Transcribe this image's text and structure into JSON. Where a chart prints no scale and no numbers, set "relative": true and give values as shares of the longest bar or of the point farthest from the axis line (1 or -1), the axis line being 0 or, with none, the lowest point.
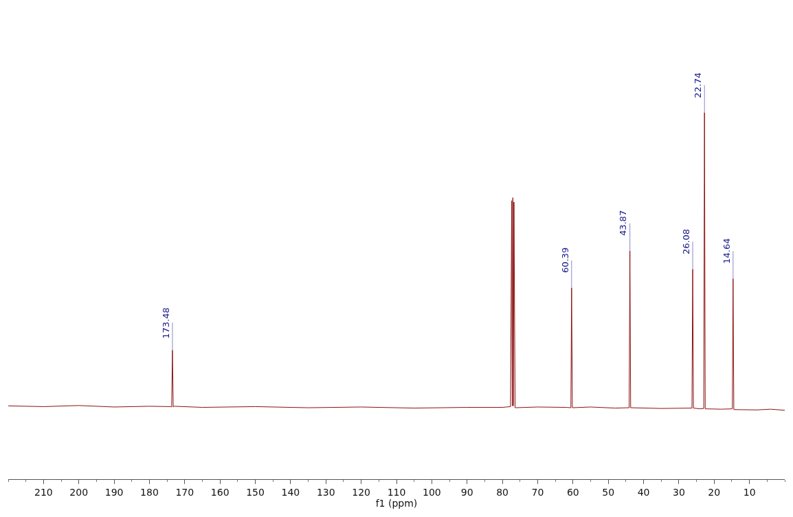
{
  "chart_data": {
    "type": "line",
    "relative": true,
    "xlabel": "f1 (ppm)",
    "x": [
      220,
      210,
      200,
      190,
      180,
      174,
      173.7,
      173.48,
      173.26,
      173,
      165,
      150,
      135,
      120,
      105,
      90,
      80,
      77.7,
      77.36,
      77.2,
      77.04,
      76.88,
      76.72,
      76.4,
      70,
      62,
      60.6,
      60.39,
      60.18,
      55,
      48,
      44.08,
      43.87,
      43.66,
      35,
      26.29,
      26.08,
      25.87,
      24,
      22.95,
      22.74,
      22.53,
      18,
      14.85,
      14.64,
      14.43,
      8,
      4,
      0
    ],
    "series": [
      {
        "color": "#8b1010",
        "values": [
          0.2,
          0.198,
          0.201,
          0.197,
          0.199,
          0.198,
          0.197,
          0.352,
          0.197,
          0.199,
          0.196,
          0.198,
          0.195,
          0.197,
          0.194,
          0.196,
          0.196,
          0.198,
          0.76,
          0.2,
          0.768,
          0.2,
          0.756,
          0.195,
          0.197,
          0.196,
          0.195,
          0.522,
          0.195,
          0.197,
          0.194,
          0.195,
          0.623,
          0.195,
          0.193,
          0.194,
          0.573,
          0.194,
          0.192,
          0.193,
          1.0,
          0.192,
          0.191,
          0.192,
          0.547,
          0.19,
          0.189,
          0.191,
          0.188
        ]
      }
    ],
    "xlim": [
      220,
      0
    ],
    "xticks": [
      210,
      200,
      190,
      180,
      170,
      160,
      150,
      140,
      130,
      120,
      110,
      100,
      90,
      80,
      70,
      60,
      50,
      40,
      30,
      20,
      10
    ],
    "annotations": [
      {
        "text": "173.48",
        "x": 173.48,
        "y": 0.352
      },
      {
        "text": "60.39",
        "x": 60.39,
        "y": 0.522
      },
      {
        "text": "43.87",
        "x": 43.87,
        "y": 0.623
      },
      {
        "text": "26.08",
        "x": 26.08,
        "y": 0.573
      },
      {
        "text": "22.74",
        "x": 22.74,
        "y": 1.0
      },
      {
        "text": "14.64",
        "x": 14.64,
        "y": 0.547
      }
    ],
    "marker": "none",
    "line_style": "solid"
  }
}
